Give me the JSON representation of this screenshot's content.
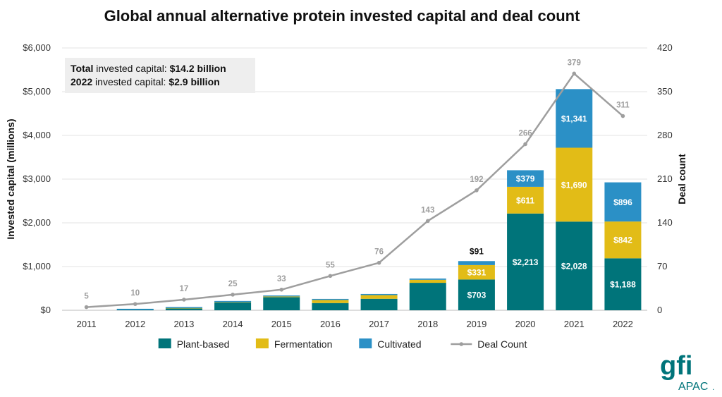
{
  "header": {
    "title": "Global annual alternative protein invested capital and deal count"
  },
  "kpis": {
    "total_prefix": "Total",
    "total_label": " invested capital: ",
    "total_value": "$14.2 billion",
    "year_prefix": "2022",
    "year_label": " invested capital: ",
    "year_value": "$2.9 billion"
  },
  "chart_data": {
    "type": "bar",
    "title": "Global annual alternative protein invested capital and deal count",
    "categories": [
      "2011",
      "2012",
      "2013",
      "2014",
      "2015",
      "2016",
      "2017",
      "2018",
      "2019",
      "2020",
      "2021",
      "2022"
    ],
    "series": [
      {
        "name": "Plant-based",
        "kind": "stacked-bar",
        "color": "#00747a",
        "values": [
          0,
          10,
          42,
          180,
          300,
          165,
          262,
          628,
          703,
          2213,
          2028,
          1188
        ],
        "labels": [
          "",
          "",
          "",
          "",
          "",
          "",
          "",
          "",
          "$703",
          "$2,213",
          "$2,028",
          "$1,188"
        ]
      },
      {
        "name": "Fermentation",
        "kind": "stacked-bar",
        "color": "#e2bc17",
        "values": [
          0,
          0,
          8,
          8,
          15,
          70,
          85,
          68,
          331,
          611,
          1690,
          842
        ],
        "labels": [
          "",
          "",
          "",
          "",
          "",
          "",
          "",
          "",
          "$331",
          "$611",
          "$1,690",
          "$842"
        ]
      },
      {
        "name": "Cultivated",
        "kind": "stacked-bar",
        "color": "#2b90c6",
        "values": [
          0,
          2,
          2,
          3,
          5,
          12,
          25,
          30,
          91,
          379,
          1341,
          896
        ],
        "labels": [
          "",
          "",
          "",
          "",
          "",
          "",
          "",
          "",
          "",
          "$379",
          "$1,341",
          "$896"
        ]
      },
      {
        "name": "Deal Count",
        "kind": "line",
        "axis": "right",
        "color": "#9e9e9e",
        "values": [
          5,
          10,
          17,
          25,
          33,
          55,
          76,
          143,
          192,
          266,
          379,
          311
        ],
        "labels": [
          "5",
          "10",
          "17",
          "25",
          "33",
          "55",
          "76",
          "143",
          "192",
          "266",
          "379",
          "311"
        ]
      }
    ],
    "callouts": [
      {
        "category": "2019",
        "text": "$91"
      }
    ],
    "ylabel": "Invested capital (millions)",
    "y2label": "Deal count",
    "ylim": [
      0,
      6000
    ],
    "y2lim": [
      0,
      420
    ],
    "yticks": [
      "$0",
      "$1,000",
      "$2,000",
      "$3,000",
      "$4,000",
      "$5,000",
      "$6,000"
    ],
    "y2ticks": [
      "0",
      "70",
      "140",
      "210",
      "280",
      "350",
      "420"
    ],
    "legend_position": "bottom",
    "grid": true
  },
  "logo": {
    "text": "gfi",
    "sub": "APAC",
    "mark": ".",
    "color": "#00747a"
  }
}
